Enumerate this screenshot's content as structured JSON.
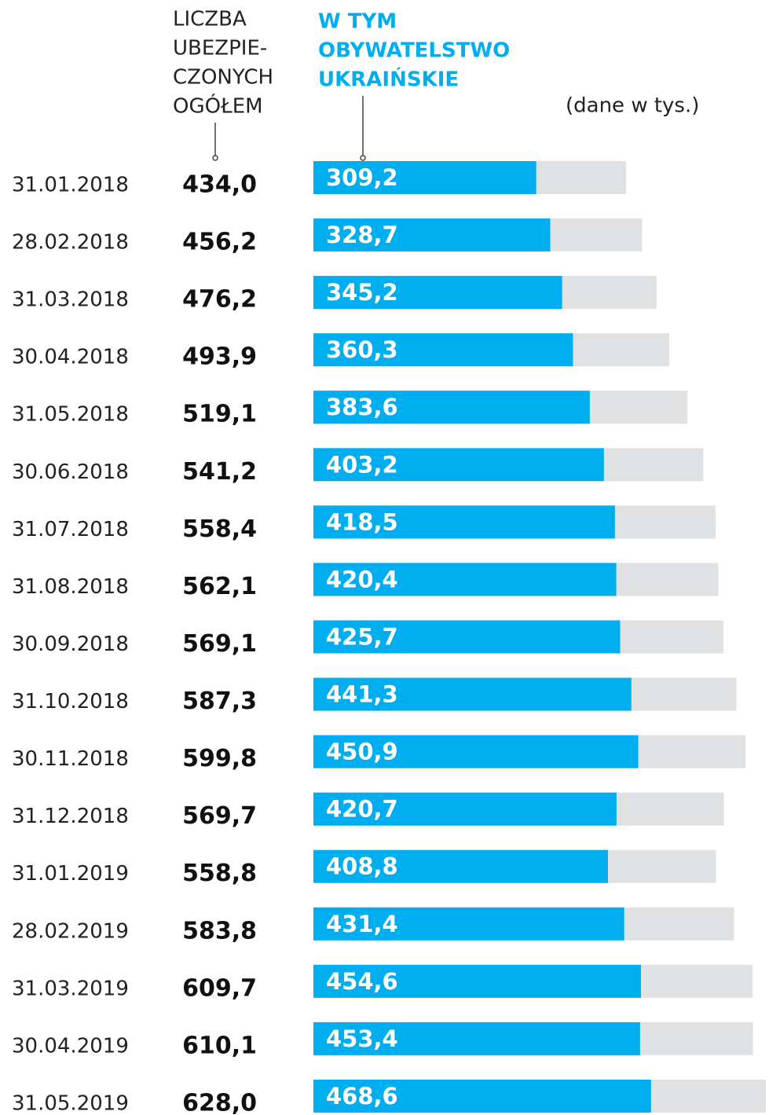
{
  "chart_data": {
    "type": "bar",
    "orientation": "horizontal",
    "note": "(dane w tys.)",
    "categories": [
      "31.01.2018",
      "28.02.2018",
      "31.03.2018",
      "30.04.2018",
      "31.05.2018",
      "30.06.2018",
      "31.07.2018",
      "31.08.2018",
      "30.09.2018",
      "31.10.2018",
      "30.11.2018",
      "31.12.2018",
      "31.01.2019",
      "28.02.2019",
      "31.03.2019",
      "30.04.2019",
      "31.05.2019"
    ],
    "series": [
      {
        "name": [
          "LICZBA",
          "UBEZPIE-",
          "CZONYCH",
          "OGÓŁEM"
        ],
        "color": "#e0e1e3",
        "values": [
          434.0,
          456.2,
          476.2,
          493.9,
          519.1,
          541.2,
          558.4,
          562.1,
          569.1,
          587.3,
          599.8,
          569.7,
          558.8,
          583.8,
          609.7,
          610.1,
          628.0
        ],
        "value_labels": [
          "434,0",
          "456,2",
          "476,2",
          "493,9",
          "519,1",
          "541,2",
          "558,4",
          "562,1",
          "569,1",
          "587,3",
          "599,8",
          "569,7",
          "558,8",
          "583,8",
          "609,7",
          "610,1",
          "628,0"
        ]
      },
      {
        "name": [
          "W TYM",
          "OBYWATELSTWO",
          "UKRAIŃSKIE"
        ],
        "color": "#00aeef",
        "values": [
          309.2,
          328.7,
          345.2,
          360.3,
          383.6,
          403.2,
          418.5,
          420.4,
          425.7,
          441.3,
          450.9,
          420.7,
          408.8,
          431.4,
          454.6,
          453.4,
          468.6
        ],
        "value_labels": [
          "309,2",
          "328,7",
          "345,2",
          "360,3",
          "383,6",
          "403,2",
          "418,5",
          "420,4",
          "425,7",
          "441,3",
          "450,9",
          "420,7",
          "408,8",
          "431,4",
          "454,6",
          "453,4",
          "468,6"
        ]
      }
    ]
  }
}
